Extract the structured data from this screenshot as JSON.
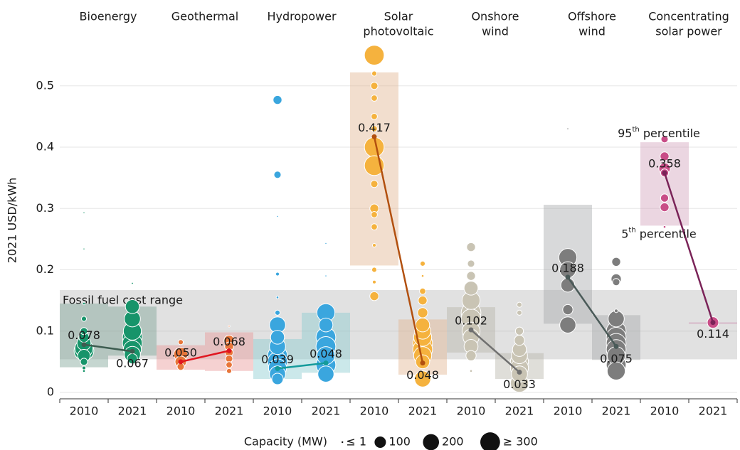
{
  "chart_data": {
    "type": "bubble",
    "y_label": "2021 USD/kWh",
    "ylim": [
      0,
      0.56
    ],
    "yticks": [
      0,
      0.1,
      0.2,
      0.3,
      0.4,
      0.5
    ],
    "grid": true,
    "fossil_range": {
      "label": "Fossil fuel cost range",
      "low": 0.054,
      "high": 0.167
    },
    "percentile_labels": [
      {
        "ordinal": "95",
        "suffix": "th",
        "rest": " percentile"
      },
      {
        "ordinal": "5",
        "suffix": "th",
        "rest": " percentile"
      }
    ],
    "legend": {
      "title": "Capacity (MW)",
      "items": [
        {
          "label": "≤ 1",
          "size": 1
        },
        {
          "label": "100",
          "size": 100
        },
        {
          "label": "200",
          "size": 200
        },
        {
          "label": "≥ 300",
          "size": 300
        }
      ]
    },
    "technologies": [
      {
        "name": [
          "Bioenergy"
        ],
        "years": [
          "2010",
          "2021"
        ],
        "color": "#17946a",
        "box_color": "#7fa596",
        "line_color": "#3d5c50",
        "values": [
          0.078,
          0.067
        ],
        "value_labels": [
          "0.078",
          "0.067"
        ],
        "p5": [
          0.041,
          0.06
        ],
        "p95": [
          0.145,
          0.14
        ],
        "points": [
          [
            [
              0.293,
              2
            ],
            [
              0.234,
              2
            ],
            [
              0.145,
              5
            ],
            [
              0.12,
              20
            ],
            [
              0.1,
              40
            ],
            [
              0.09,
              80
            ],
            [
              0.08,
              150
            ],
            [
              0.072,
              250
            ],
            [
              0.068,
              300
            ],
            [
              0.06,
              120
            ],
            [
              0.05,
              40
            ],
            [
              0.04,
              10
            ],
            [
              0.035,
              5
            ]
          ],
          [
            [
              0.178,
              3
            ],
            [
              0.14,
              150
            ],
            [
              0.12,
              200
            ],
            [
              0.1,
              250
            ],
            [
              0.09,
              300
            ],
            [
              0.08,
              300
            ],
            [
              0.07,
              250
            ],
            [
              0.062,
              200
            ],
            [
              0.055,
              80
            ]
          ]
        ]
      },
      {
        "name": [
          "Geothermal"
        ],
        "years": [
          "2010",
          "2021"
        ],
        "color": "#e8763a",
        "box_color": "#e89a9a",
        "line_color": "#e0161f",
        "values": [
          0.05,
          0.068
        ],
        "value_labels": [
          "0.050",
          "0.068"
        ],
        "p5": [
          0.037,
          0.035
        ],
        "p95": [
          0.077,
          0.098
        ],
        "points": [
          [
            [
              0.082,
              20
            ],
            [
              0.062,
              150
            ],
            [
              0.05,
              100
            ],
            [
              0.042,
              40
            ]
          ],
          [
            [
              0.108,
              2
            ],
            [
              0.085,
              80
            ],
            [
              0.075,
              60
            ],
            [
              0.065,
              50
            ],
            [
              0.055,
              40
            ],
            [
              0.045,
              30
            ],
            [
              0.035,
              20
            ]
          ]
        ]
      },
      {
        "name": [
          "Hydropower"
        ],
        "years": [
          "2010",
          "2021"
        ],
        "color": "#3aa6de",
        "box_color": "#8ccdd0",
        "line_color": "#159b9b",
        "values": [
          0.039,
          0.048
        ],
        "value_labels": [
          "0.039",
          "0.048"
        ],
        "p5": [
          0.022,
          0.032
        ],
        "p95": [
          0.087,
          0.13
        ],
        "points": [
          [
            [
              0.477,
              60
            ],
            [
              0.355,
              40
            ],
            [
              0.287,
              1
            ],
            [
              0.193,
              10
            ],
            [
              0.155,
              5
            ],
            [
              0.13,
              20
            ],
            [
              0.11,
              200
            ],
            [
              0.09,
              150
            ],
            [
              0.075,
              200
            ],
            [
              0.06,
              300
            ],
            [
              0.05,
              300
            ],
            [
              0.04,
              250
            ],
            [
              0.03,
              200
            ],
            [
              0.022,
              100
            ]
          ],
          [
            [
              0.243,
              1
            ],
            [
              0.19,
              1
            ],
            [
              0.13,
              250
            ],
            [
              0.11,
              150
            ],
            [
              0.09,
              300
            ],
            [
              0.075,
              300
            ],
            [
              0.06,
              250
            ],
            [
              0.045,
              300
            ],
            [
              0.03,
              200
            ]
          ]
        ]
      },
      {
        "name": [
          "Solar",
          "photovoltaic"
        ],
        "years": [
          "2010",
          "2021"
        ],
        "color": "#f5b23e",
        "box_color": "#e3b592",
        "line_color": "#b2500f",
        "values": [
          0.417,
          0.048
        ],
        "value_labels": [
          "0.417",
          "0.048"
        ],
        "p5": [
          0.207,
          0.029
        ],
        "p95": [
          0.522,
          0.119
        ],
        "points": [
          [
            [
              0.55,
              300
            ],
            [
              0.52,
              20
            ],
            [
              0.5,
              40
            ],
            [
              0.48,
              30
            ],
            [
              0.45,
              30
            ],
            [
              0.43,
              30
            ],
            [
              0.4,
              300
            ],
            [
              0.37,
              300
            ],
            [
              0.34,
              40
            ],
            [
              0.3,
              60
            ],
            [
              0.29,
              30
            ],
            [
              0.27,
              30
            ],
            [
              0.24,
              10
            ],
            [
              0.2,
              20
            ],
            [
              0.18,
              10
            ],
            [
              0.157,
              60
            ]
          ],
          [
            [
              0.21,
              20
            ],
            [
              0.19,
              5
            ],
            [
              0.165,
              30
            ],
            [
              0.15,
              60
            ],
            [
              0.13,
              80
            ],
            [
              0.11,
              150
            ],
            [
              0.1,
              200
            ],
            [
              0.09,
              250
            ],
            [
              0.08,
              300
            ],
            [
              0.07,
              300
            ],
            [
              0.06,
              250
            ],
            [
              0.05,
              150
            ],
            [
              0.022,
              200
            ]
          ]
        ]
      },
      {
        "name": [
          "Onshore",
          "wind"
        ],
        "years": [
          "2010",
          "2021"
        ],
        "color": "#c9c4b4",
        "box_color": "#b9b6aa",
        "line_color": "#707070",
        "values": [
          0.102,
          0.033
        ],
        "value_labels": [
          "0.102",
          "0.033"
        ],
        "p5": [
          0.065,
          0.022
        ],
        "p95": [
          0.139,
          0.064
        ],
        "points": [
          [
            [
              0.237,
              60
            ],
            [
              0.21,
              40
            ],
            [
              0.19,
              60
            ],
            [
              0.17,
              150
            ],
            [
              0.15,
              250
            ],
            [
              0.13,
              300
            ],
            [
              0.12,
              300
            ],
            [
              0.1,
              250
            ],
            [
              0.09,
              200
            ],
            [
              0.075,
              150
            ],
            [
              0.06,
              80
            ],
            [
              0.035,
              5
            ]
          ],
          [
            [
              0.143,
              20
            ],
            [
              0.13,
              20
            ],
            [
              0.1,
              50
            ],
            [
              0.085,
              80
            ],
            [
              0.07,
              150
            ],
            [
              0.06,
              200
            ],
            [
              0.05,
              250
            ],
            [
              0.04,
              250
            ],
            [
              0.03,
              200
            ],
            [
              0.015,
              250
            ]
          ]
        ]
      },
      {
        "name": [
          "Offshore",
          "wind"
        ],
        "years": [
          "2010",
          "2021"
        ],
        "color": "#7d7d7d",
        "box_color": "#a9abad",
        "line_color": "#4a5a58",
        "values": [
          0.188,
          0.075
        ],
        "value_labels": [
          "0.188",
          "0.075"
        ],
        "p5": [
          0.112,
          0.053
        ],
        "p95": [
          0.306,
          0.126
        ],
        "points": [
          [
            [
              0.43,
              1
            ],
            [
              0.22,
              250
            ],
            [
              0.2,
              200
            ],
            [
              0.175,
              150
            ],
            [
              0.135,
              80
            ],
            [
              0.11,
              200
            ]
          ],
          [
            [
              0.213,
              60
            ],
            [
              0.185,
              80
            ],
            [
              0.18,
              40
            ],
            [
              0.133,
              10
            ],
            [
              0.12,
              200
            ],
            [
              0.1,
              300
            ],
            [
              0.09,
              300
            ],
            [
              0.08,
              300
            ],
            [
              0.07,
              300
            ],
            [
              0.06,
              250
            ],
            [
              0.045,
              300
            ],
            [
              0.035,
              250
            ]
          ]
        ]
      },
      {
        "name": [
          "Concentrating",
          "solar power"
        ],
        "years": [
          "2010",
          "2021"
        ],
        "color": "#c84d87",
        "box_color": "#d3a3bc",
        "line_color": "#7a2358",
        "values": [
          0.358,
          0.114
        ],
        "value_labels": [
          "0.358",
          "0.114"
        ],
        "p5": [
          0.272,
          0.114
        ],
        "p95": [
          0.408,
          0.114
        ],
        "points": [
          [
            [
              0.413,
              40
            ],
            [
              0.385,
              60
            ],
            [
              0.365,
              100
            ],
            [
              0.358,
              50
            ],
            [
              0.317,
              50
            ],
            [
              0.302,
              60
            ],
            [
              0.27,
              5
            ]
          ],
          [
            [
              0.114,
              100
            ]
          ]
        ]
      }
    ]
  }
}
